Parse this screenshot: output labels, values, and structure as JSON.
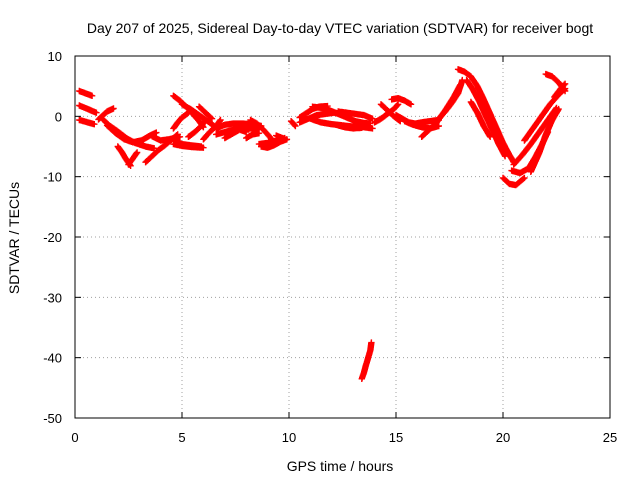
{
  "chart_data": {
    "type": "scatter",
    "title": "Day 207 of 2025, Sidereal Day-to-day VTEC variation (SDTVAR) for receiver bogt",
    "xlabel": "GPS time / hours",
    "ylabel": "SDTVAR / TECUs",
    "xlim": [
      0,
      25
    ],
    "ylim": [
      -50,
      10
    ],
    "xticks": [
      0,
      5,
      10,
      15,
      20,
      25
    ],
    "yticks": [
      10,
      0,
      -10,
      -20,
      -30,
      -40,
      -50
    ],
    "grid": true,
    "marker": "+",
    "color": "#ff0000",
    "series": [
      {
        "name": "SDTVAR",
        "segments": [
          [
            [
              0.2,
              4.2
            ],
            [
              0.5,
              3.8
            ],
            [
              0.8,
              3.4
            ]
          ],
          [
            [
              0.2,
              1.8
            ],
            [
              0.6,
              1.2
            ],
            [
              1.0,
              0.6
            ]
          ],
          [
            [
              0.2,
              -0.6
            ],
            [
              0.6,
              -1.0
            ],
            [
              0.9,
              -1.3
            ]
          ],
          [
            [
              1.1,
              -0.5
            ],
            [
              1.5,
              0.8
            ],
            [
              1.8,
              1.3
            ]
          ],
          [
            [
              1.3,
              -0.5
            ],
            [
              1.6,
              -1.5
            ],
            [
              2.0,
              -2.5
            ],
            [
              2.4,
              -3.6
            ],
            [
              2.8,
              -4.4
            ],
            [
              3.3,
              -5.0
            ],
            [
              3.7,
              -5.3
            ]
          ],
          [
            [
              1.5,
              -1.5
            ],
            [
              1.9,
              -2.8
            ],
            [
              2.3,
              -3.8
            ],
            [
              2.7,
              -4.3
            ],
            [
              3.1,
              -4.0
            ],
            [
              3.5,
              -3.2
            ],
            [
              3.8,
              -2.7
            ]
          ],
          [
            [
              2.0,
              -5.0
            ],
            [
              2.2,
              -6.0
            ],
            [
              2.4,
              -7.2
            ],
            [
              2.6,
              -8.2
            ]
          ],
          [
            [
              2.5,
              -8.0
            ],
            [
              2.7,
              -7.0
            ],
            [
              2.9,
              -6.0
            ]
          ],
          [
            [
              3.3,
              -7.6
            ],
            [
              3.6,
              -6.6
            ],
            [
              3.9,
              -5.6
            ],
            [
              4.2,
              -4.8
            ],
            [
              4.5,
              -3.9
            ],
            [
              4.8,
              -3.0
            ]
          ],
          [
            [
              3.6,
              -3.3
            ],
            [
              4.0,
              -4.0
            ],
            [
              4.4,
              -3.8
            ],
            [
              4.9,
              -3.4
            ]
          ],
          [
            [
              4.6,
              -4.6
            ],
            [
              5.0,
              -4.9
            ],
            [
              5.5,
              -5.1
            ],
            [
              6.0,
              -5.2
            ]
          ],
          [
            [
              4.6,
              -4.0
            ],
            [
              5.0,
              -4.6
            ],
            [
              5.4,
              -4.8
            ],
            [
              5.9,
              -5.0
            ]
          ],
          [
            [
              4.6,
              3.4
            ],
            [
              4.9,
              2.6
            ],
            [
              5.2,
              1.6
            ],
            [
              5.5,
              0.4
            ],
            [
              5.8,
              -0.8
            ],
            [
              6.0,
              -1.8
            ]
          ],
          [
            [
              5.0,
              2.0
            ],
            [
              5.4,
              1.2
            ],
            [
              5.8,
              0.2
            ],
            [
              6.2,
              -0.8
            ],
            [
              6.5,
              -1.6
            ]
          ],
          [
            [
              4.6,
              -2.0
            ],
            [
              4.8,
              -1.0
            ],
            [
              5.0,
              -0.2
            ],
            [
              5.3,
              0.6
            ]
          ],
          [
            [
              5.3,
              -3.4
            ],
            [
              5.6,
              -2.6
            ],
            [
              5.9,
              -1.6
            ],
            [
              6.1,
              -0.6
            ]
          ],
          [
            [
              5.8,
              1.6
            ],
            [
              6.1,
              0.6
            ],
            [
              6.4,
              -0.4
            ]
          ],
          [
            [
              6.0,
              -3.8
            ],
            [
              6.3,
              -2.6
            ],
            [
              6.6,
              -1.6
            ],
            [
              6.8,
              -0.6
            ]
          ],
          [
            [
              6.6,
              -3.0
            ],
            [
              7.0,
              -2.6
            ],
            [
              7.4,
              -2.2
            ],
            [
              7.8,
              -2.0
            ],
            [
              8.2,
              -2.0
            ],
            [
              8.6,
              -2.2
            ]
          ],
          [
            [
              6.6,
              -2.0
            ],
            [
              7.0,
              -1.4
            ],
            [
              7.4,
              -1.2
            ],
            [
              7.8,
              -1.2
            ],
            [
              8.3,
              -1.3
            ],
            [
              8.7,
              -1.6
            ]
          ],
          [
            [
              7.0,
              -3.6
            ],
            [
              7.4,
              -2.8
            ],
            [
              7.7,
              -2.2
            ],
            [
              8.0,
              -2.6
            ]
          ],
          [
            [
              8.0,
              -3.6
            ],
            [
              8.3,
              -3.0
            ],
            [
              8.6,
              -2.8
            ]
          ],
          [
            [
              8.2,
              -0.6
            ],
            [
              8.5,
              -1.2
            ],
            [
              8.8,
              -2.2
            ],
            [
              9.1,
              -3.4
            ],
            [
              9.3,
              -4.4
            ]
          ],
          [
            [
              8.6,
              -4.6
            ],
            [
              9.0,
              -4.4
            ],
            [
              9.4,
              -4.0
            ],
            [
              9.8,
              -3.6
            ]
          ],
          [
            [
              8.7,
              -5.0
            ],
            [
              9.0,
              -5.2
            ],
            [
              9.3,
              -4.8
            ],
            [
              9.6,
              -4.2
            ],
            [
              9.9,
              -3.8
            ]
          ],
          [
            [
              9.4,
              -3.2
            ],
            [
              9.7,
              -3.6
            ]
          ],
          [
            [
              10.1,
              -0.8
            ],
            [
              10.3,
              -1.6
            ]
          ],
          [
            [
              10.5,
              -1.0
            ],
            [
              10.9,
              -0.4
            ],
            [
              11.3,
              0.2
            ],
            [
              11.7,
              0.4
            ],
            [
              12.1,
              0.6
            ],
            [
              12.5,
              0.4
            ]
          ],
          [
            [
              10.5,
              -0.2
            ],
            [
              10.8,
              0.5
            ],
            [
              11.1,
              1.2
            ],
            [
              11.4,
              1.6
            ],
            [
              11.8,
              1.7
            ]
          ],
          [
            [
              11.1,
              1.6
            ],
            [
              11.5,
              1.4
            ],
            [
              11.9,
              1.0
            ],
            [
              12.3,
              0.4
            ],
            [
              12.7,
              -0.2
            ],
            [
              13.1,
              -0.8
            ],
            [
              13.5,
              -1.1
            ],
            [
              13.8,
              -1.2
            ]
          ],
          [
            [
              11.0,
              -0.4
            ],
            [
              11.5,
              -1.0
            ],
            [
              12.0,
              -1.3
            ],
            [
              12.5,
              -1.5
            ],
            [
              13.0,
              -1.7
            ],
            [
              13.5,
              -1.8
            ],
            [
              13.9,
              -2.0
            ]
          ],
          [
            [
              12.2,
              -1.4
            ],
            [
              12.6,
              -1.8
            ],
            [
              13.0,
              -2.0
            ],
            [
              13.4,
              -1.9
            ]
          ],
          [
            [
              12.3,
              0.8
            ],
            [
              12.7,
              0.6
            ],
            [
              13.1,
              0.4
            ],
            [
              13.5,
              0.2
            ],
            [
              13.9,
              -0.4
            ]
          ],
          [
            [
              13.4,
              -43.5
            ],
            [
              13.5,
              -42.5
            ],
            [
              13.6,
              -41.2
            ],
            [
              13.7,
              -40.0
            ],
            [
              13.8,
              -38.8
            ],
            [
              13.85,
              -37.5
            ]
          ],
          [
            [
              14.0,
              -1.0
            ],
            [
              14.3,
              -0.4
            ],
            [
              14.6,
              0.4
            ],
            [
              14.9,
              1.2
            ],
            [
              15.1,
              2.0
            ]
          ],
          [
            [
              14.3,
              2.0
            ],
            [
              14.6,
              1.0
            ],
            [
              14.9,
              0.0
            ],
            [
              15.2,
              -0.8
            ]
          ],
          [
            [
              14.8,
              2.8
            ],
            [
              15.1,
              3.0
            ],
            [
              15.4,
              2.6
            ],
            [
              15.7,
              2.0
            ]
          ],
          [
            [
              15.0,
              0.2
            ],
            [
              15.3,
              -0.4
            ],
            [
              15.6,
              -1.0
            ],
            [
              15.9,
              -1.2
            ],
            [
              16.2,
              -1.0
            ],
            [
              16.6,
              -0.8
            ],
            [
              17.0,
              -0.6
            ]
          ],
          [
            [
              15.4,
              -0.8
            ],
            [
              15.8,
              -1.4
            ],
            [
              16.2,
              -1.8
            ],
            [
              16.6,
              -2.0
            ],
            [
              17.0,
              -1.6
            ]
          ],
          [
            [
              16.2,
              -3.4
            ],
            [
              16.5,
              -2.4
            ],
            [
              16.9,
              -1.0
            ],
            [
              17.3,
              1.0
            ],
            [
              17.7,
              3.2
            ],
            [
              18.0,
              5.2
            ]
          ],
          [
            [
              17.0,
              -0.4
            ],
            [
              17.3,
              0.8
            ],
            [
              17.6,
              2.2
            ],
            [
              17.9,
              3.8
            ],
            [
              18.1,
              6.0
            ]
          ],
          [
            [
              17.9,
              7.8
            ],
            [
              18.2,
              7.4
            ],
            [
              18.5,
              6.6
            ],
            [
              18.8,
              5.0
            ],
            [
              19.1,
              2.8
            ],
            [
              19.4,
              0.4
            ],
            [
              19.7,
              -2.0
            ],
            [
              20.0,
              -4.4
            ],
            [
              20.3,
              -6.4
            ],
            [
              20.5,
              -7.6
            ]
          ],
          [
            [
              18.3,
              6.0
            ],
            [
              18.6,
              4.4
            ],
            [
              18.9,
              2.4
            ],
            [
              19.2,
              0.0
            ],
            [
              19.5,
              -2.2
            ],
            [
              19.8,
              -4.6
            ],
            [
              20.1,
              -6.6
            ]
          ],
          [
            [
              18.5,
              2.4
            ],
            [
              18.8,
              0.6
            ],
            [
              19.1,
              -1.6
            ],
            [
              19.4,
              -3.4
            ]
          ],
          [
            [
              20.0,
              -10.2
            ],
            [
              20.3,
              -11.2
            ],
            [
              20.6,
              -11.4
            ],
            [
              21.0,
              -10.2
            ]
          ],
          [
            [
              20.4,
              -9.0
            ],
            [
              20.8,
              -9.4
            ],
            [
              21.2,
              -8.6
            ],
            [
              21.5,
              -6.8
            ],
            [
              21.8,
              -4.8
            ],
            [
              22.1,
              -2.6
            ]
          ],
          [
            [
              20.5,
              -8.0
            ],
            [
              20.9,
              -6.4
            ],
            [
              21.3,
              -4.6
            ],
            [
              21.7,
              -2.6
            ],
            [
              22.1,
              -0.6
            ],
            [
              22.5,
              1.4
            ]
          ],
          [
            [
              21.0,
              -4.0
            ],
            [
              21.4,
              -2.0
            ],
            [
              21.8,
              0.0
            ],
            [
              22.2,
              2.0
            ],
            [
              22.6,
              3.6
            ],
            [
              22.9,
              4.6
            ]
          ],
          [
            [
              21.3,
              -9.2
            ],
            [
              21.7,
              -6.0
            ],
            [
              22.0,
              -3.0
            ],
            [
              22.3,
              -0.6
            ],
            [
              22.6,
              1.2
            ]
          ],
          [
            [
              22.0,
              7.0
            ],
            [
              22.3,
              6.6
            ],
            [
              22.6,
              5.6
            ],
            [
              22.9,
              4.2
            ]
          ],
          [
            [
              22.4,
              3.2
            ],
            [
              22.7,
              4.6
            ],
            [
              22.9,
              5.4
            ]
          ]
        ]
      }
    ]
  }
}
